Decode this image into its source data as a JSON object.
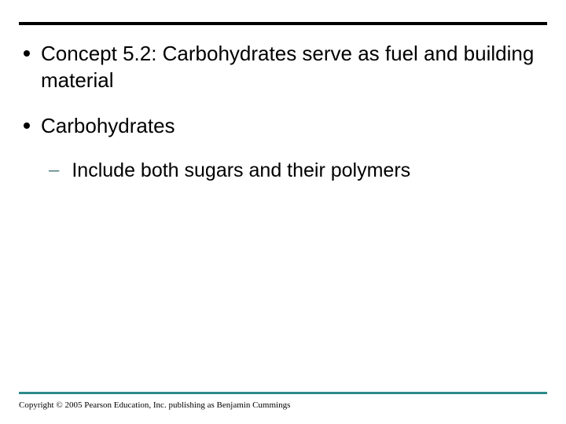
{
  "slide": {
    "top_rule_color": "#000000",
    "bottom_rule_color": "#2f8a8a",
    "background_color": "#ffffff",
    "bullets": [
      {
        "text": "Concept 5.2: Carbohydrates serve as fuel and building material"
      },
      {
        "text": "Carbohydrates"
      }
    ],
    "sub_bullet": {
      "dash_color": "#548080",
      "text": "Include both sugars and their polymers"
    },
    "body_fontsize": 26,
    "sub_fontsize": 25,
    "copyright": "Copyright © 2005 Pearson Education, Inc. publishing as Benjamin Cummings",
    "copyright_fontsize": 11
  }
}
